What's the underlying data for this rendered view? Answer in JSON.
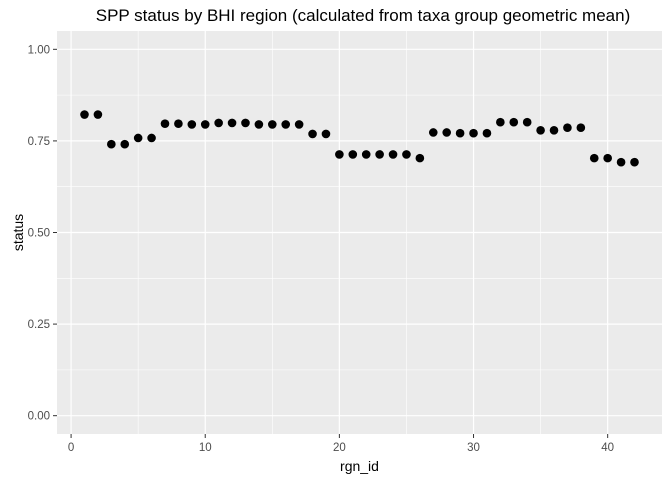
{
  "chart_data": {
    "type": "scatter",
    "title": "SPP status by BHI region (calculated from taxa group geometric mean)",
    "xlabel": "rgn_id",
    "ylabel": "status",
    "xlim": [
      -1.05,
      44.05
    ],
    "ylim": [
      -0.05,
      1.05
    ],
    "x_ticks": [
      0,
      10,
      20,
      30,
      40
    ],
    "y_ticks": [
      0.0,
      0.25,
      0.5,
      0.75,
      1.0
    ],
    "x_tick_labels": [
      "0",
      "10",
      "20",
      "30",
      "40"
    ],
    "y_tick_labels": [
      "0.00",
      "0.25",
      "0.50",
      "0.75",
      "1.00"
    ],
    "grid": true,
    "panel_background": "#ebebeb",
    "grid_color": "#ffffff",
    "point_color": "#000000",
    "x": [
      1,
      2,
      3,
      4,
      5,
      6,
      7,
      8,
      9,
      10,
      11,
      12,
      13,
      14,
      15,
      16,
      17,
      18,
      19,
      20,
      21,
      22,
      23,
      24,
      25,
      26,
      27,
      28,
      29,
      30,
      31,
      32,
      33,
      34,
      35,
      36,
      37,
      38,
      39,
      40,
      41,
      42
    ],
    "y": [
      0.822,
      0.822,
      0.741,
      0.741,
      0.758,
      0.758,
      0.797,
      0.797,
      0.795,
      0.795,
      0.799,
      0.799,
      0.799,
      0.795,
      0.795,
      0.795,
      0.795,
      0.769,
      0.769,
      0.713,
      0.713,
      0.713,
      0.713,
      0.713,
      0.713,
      0.703,
      0.773,
      0.773,
      0.771,
      0.771,
      0.771,
      0.801,
      0.801,
      0.801,
      0.779,
      0.779,
      0.786,
      0.786,
      0.703,
      0.703,
      0.692,
      0.692
    ]
  }
}
